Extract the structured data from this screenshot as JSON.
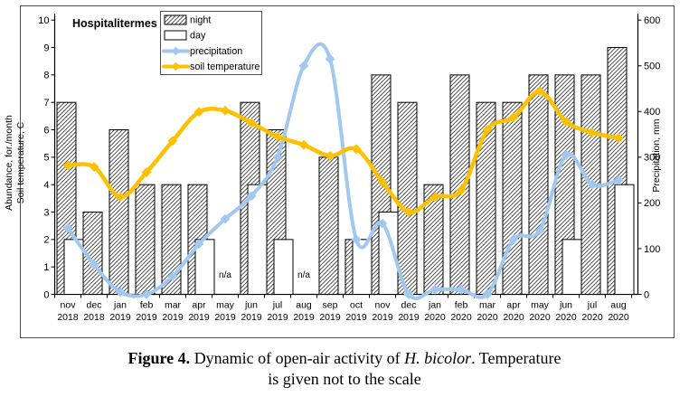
{
  "caption": {
    "bold": "Figure 4.",
    "mid": " Dynamic of open-air activity of ",
    "species": "H. bicolor",
    "tail": ". Temperature",
    "line2": "is given not to the scale"
  },
  "chart_data": {
    "type": "bar",
    "subtype": "combo bar + smoothed lines",
    "title": "Hospitalitermes bicolor",
    "categories": [
      "nov 2018",
      "dec 2018",
      "jan 2019",
      "feb 2019",
      "mar 2019",
      "apr 2019",
      "may 2019",
      "jun 2019",
      "jul 2019",
      "aug 2019",
      "sep 2019",
      "oct 2019",
      "nov 2019",
      "dec 2019",
      "jan 2020",
      "feb 2020",
      "mar 2020",
      "apr 2020",
      "may 2020",
      "jun 2020",
      "jul 2020",
      "aug 2020"
    ],
    "series": [
      {
        "name": "night",
        "type": "bar",
        "style": "hatched",
        "axis": "left",
        "values": [
          7,
          3,
          6,
          4,
          4,
          4,
          null,
          7,
          6,
          null,
          5,
          2,
          8,
          7,
          4,
          8,
          7,
          7,
          8,
          8,
          8,
          9
        ]
      },
      {
        "name": "day",
        "type": "bar",
        "style": "white",
        "axis": "left",
        "values": [
          2,
          null,
          null,
          null,
          null,
          2,
          null,
          4,
          2,
          null,
          null,
          2,
          3,
          null,
          null,
          null,
          null,
          null,
          null,
          2,
          null,
          4
        ]
      },
      {
        "name": "precipitation",
        "type": "line",
        "axis": "right",
        "unit": "mm",
        "values": [
          145,
          65,
          5,
          0,
          40,
          110,
          165,
          215,
          300,
          500,
          515,
          120,
          155,
          0,
          10,
          10,
          0,
          120,
          140,
          305,
          240,
          250
        ]
      },
      {
        "name": "soil temperature",
        "type": "line",
        "axis": "left",
        "unit": "C (not to scale)",
        "values": [
          4.7,
          4.65,
          3.55,
          4.45,
          5.6,
          6.65,
          6.7,
          6.25,
          5.75,
          5.45,
          5.05,
          5.3,
          4.1,
          3.0,
          3.55,
          3.8,
          6.0,
          6.45,
          7.4,
          6.3,
          5.9,
          5.7
        ]
      }
    ],
    "na": {
      "label": "n/a",
      "months": [
        "may 2019",
        "aug 2019"
      ]
    },
    "left_axis": {
      "label_line1": "Abundance, for./month",
      "label_line2": "Soil temperature, C",
      "min": 0,
      "max": 10,
      "step": 1
    },
    "right_axis": {
      "label": "Precipitation, mm",
      "min": 0,
      "max": 600,
      "step": 100
    },
    "legend": {
      "position": "top-center-inside",
      "items": [
        "night",
        "day",
        "precipitation",
        "soil temperature"
      ]
    },
    "colors": {
      "precipitation": "#A0C8F0",
      "soil_temperature": "#FFC000",
      "bar_fill": "#FFFFFF",
      "bar_border": "#000000",
      "hatch_line": "#3D3D3D",
      "frame": "#4D4D4D"
    },
    "grid": "off"
  }
}
